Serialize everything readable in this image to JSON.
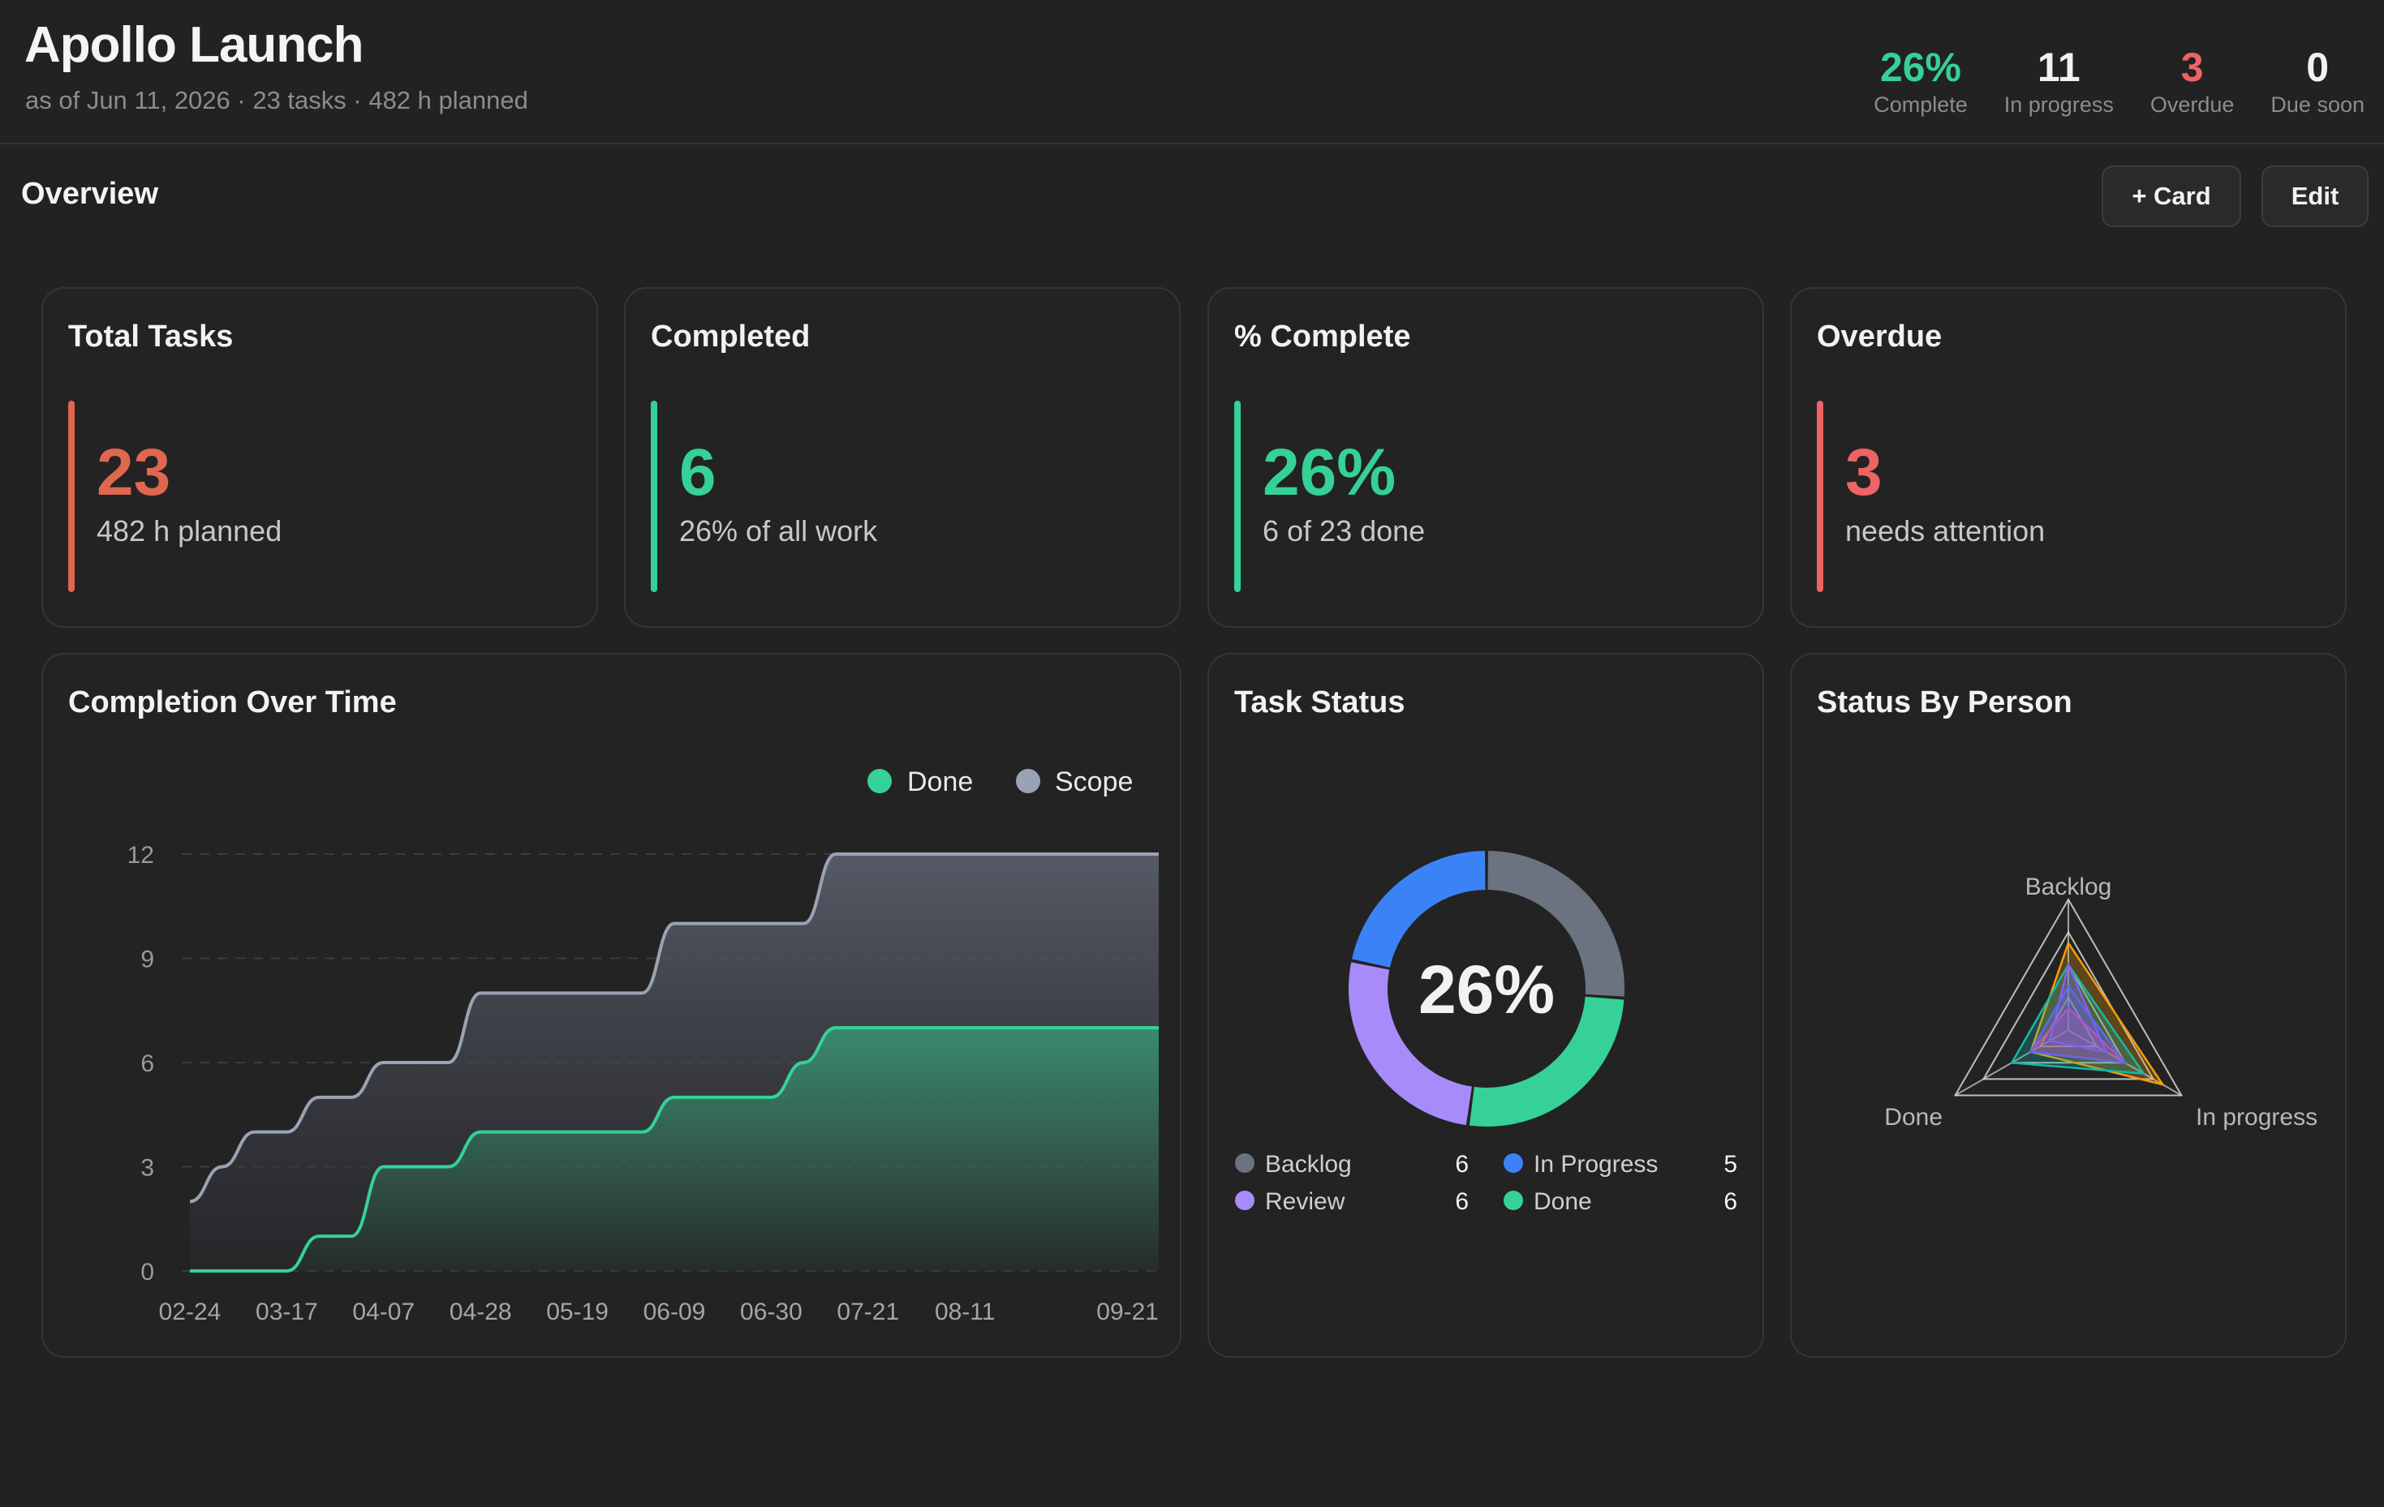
{
  "header": {
    "title": "Apollo Launch",
    "meta": "as of Jun 11, 2026 · 23 tasks · 482 h planned",
    "stats": [
      {
        "value": "26%",
        "label": "Complete",
        "color": "#35d196"
      },
      {
        "value": "11",
        "label": "In progress",
        "color": "#f2f2f2"
      },
      {
        "value": "3",
        "label": "Overdue",
        "color": "#ee6464"
      },
      {
        "value": "0",
        "label": "Due soon",
        "color": "#f2f2f2"
      }
    ]
  },
  "toolbar": {
    "title": "Overview",
    "add_card_label": "+ Card",
    "edit_label": "Edit"
  },
  "kpis": [
    {
      "title": "Total Tasks",
      "value": "23",
      "sub": "482 h planned",
      "color": "#e0664f"
    },
    {
      "title": "Completed",
      "value": "6",
      "sub": "26% of all work",
      "color": "#35d196"
    },
    {
      "title": "% Complete",
      "value": "26%",
      "sub": "6 of 23 done",
      "color": "#35d196"
    },
    {
      "title": "Overdue",
      "value": "3",
      "sub": "needs attention",
      "color": "#ee6464"
    }
  ],
  "completion": {
    "title": "Completion Over Time"
  },
  "task_status": {
    "title": "Task Status",
    "center_label": "26%",
    "legend": [
      {
        "label": "Backlog",
        "count": "6",
        "color": "#6b7280"
      },
      {
        "label": "In Progress",
        "count": "5",
        "color": "#3b82f6"
      },
      {
        "label": "Review",
        "count": "6",
        "color": "#a78bfa"
      },
      {
        "label": "Done",
        "count": "6",
        "color": "#35d196"
      }
    ]
  },
  "status_by_person": {
    "title": "Status By Person"
  },
  "chart_data": [
    {
      "type": "area",
      "title": "Completion Over Time",
      "legend": [
        "Done",
        "Scope"
      ],
      "legend_position": "top-right",
      "x_tick_labels": [
        "02-24",
        "03-17",
        "04-07",
        "04-28",
        "05-19",
        "06-09",
        "06-30",
        "07-21",
        "08-11",
        "09-21"
      ],
      "y_ticks": [
        0,
        3,
        6,
        9,
        12
      ],
      "ylim": [
        0,
        12
      ],
      "grid": true,
      "series": [
        {
          "name": "Scope",
          "color": "#9aa3b5",
          "x": [
            "02-24",
            "03-03",
            "03-10",
            "03-17",
            "03-24",
            "03-31",
            "04-07",
            "04-14",
            "04-21",
            "04-28",
            "05-05",
            "05-12",
            "05-19",
            "05-26",
            "06-02",
            "06-09",
            "06-16",
            "06-23",
            "06-30",
            "07-07",
            "07-14",
            "07-21",
            "07-28",
            "08-04",
            "08-11",
            "08-18",
            "08-25",
            "09-01",
            "09-08",
            "09-15",
            "09-21"
          ],
          "values": [
            2,
            3,
            4,
            4,
            5,
            5,
            6,
            6,
            6,
            8,
            8,
            8,
            8,
            8,
            8,
            10,
            10,
            10,
            10,
            10,
            12,
            12,
            12,
            12,
            12,
            12,
            12,
            12,
            12,
            12,
            12
          ]
        },
        {
          "name": "Done",
          "color": "#35d196",
          "x": [
            "02-24",
            "03-03",
            "03-10",
            "03-17",
            "03-24",
            "03-31",
            "04-07",
            "04-14",
            "04-21",
            "04-28",
            "05-05",
            "05-12",
            "05-19",
            "05-26",
            "06-02",
            "06-09",
            "06-16",
            "06-23",
            "06-30",
            "07-07",
            "07-14",
            "07-21",
            "07-28",
            "08-04",
            "08-11",
            "08-18",
            "08-25",
            "09-01",
            "09-08",
            "09-15",
            "09-21"
          ],
          "values": [
            0,
            0,
            0,
            0,
            1,
            1,
            3,
            3,
            3,
            4,
            4,
            4,
            4,
            4,
            4,
            5,
            5,
            5,
            5,
            6,
            7,
            7,
            7,
            7,
            7,
            7,
            7,
            7,
            7,
            7,
            7
          ]
        }
      ]
    },
    {
      "type": "pie",
      "title": "Task Status",
      "donut": true,
      "center_label": "26%",
      "categories": [
        "Backlog",
        "Done",
        "Review",
        "In Progress"
      ],
      "values": [
        6,
        6,
        6,
        5
      ],
      "colors": [
        "#6b7280",
        "#35d196",
        "#a78bfa",
        "#3b82f6"
      ]
    },
    {
      "type": "radar",
      "title": "Status By Person",
      "axes": [
        "Backlog",
        "In progress",
        "Done"
      ],
      "max": 6,
      "series": [
        {
          "color": "#f59e0b",
          "values": [
            4,
            5,
            2
          ]
        },
        {
          "color": "#14b8a6",
          "values": [
            3,
            4,
            3
          ]
        },
        {
          "color": "#ec4899",
          "values": [
            1,
            3,
            2
          ]
        },
        {
          "color": "#8b5cf6",
          "values": [
            3,
            2,
            1
          ]
        },
        {
          "color": "#6366f1",
          "values": [
            2,
            3,
            2
          ]
        }
      ]
    }
  ]
}
